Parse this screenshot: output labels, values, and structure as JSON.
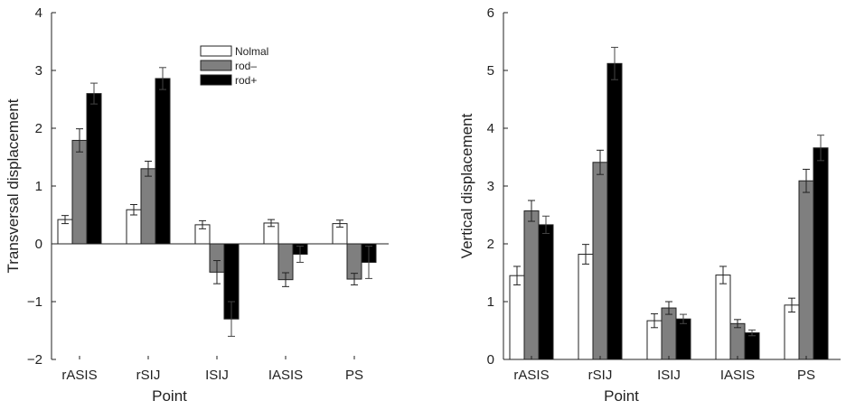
{
  "colors": {
    "Nolmal": "#ffffff",
    "rod–": "#7f7f7f",
    "rod+": "#000000",
    "axis": "#222222"
  },
  "chart_data": [
    {
      "type": "bar",
      "title": "",
      "xlabel": "Point",
      "ylabel": "Transversal displacement",
      "categories": [
        "rASIS",
        "rSIJ",
        "ISIJ",
        "IASIS",
        "PS"
      ],
      "ylim": [
        -2,
        4
      ],
      "yticks": [
        -2,
        -1,
        0,
        1,
        2,
        3,
        4
      ],
      "ytick_labels": [
        "−2",
        "−1",
        "0",
        "1",
        "2",
        "3",
        "4"
      ],
      "baseline": 0,
      "grid": false,
      "legend": {
        "position": "top-center",
        "entries": [
          "Nolmal",
          "rod–",
          "rod+"
        ]
      },
      "series": [
        {
          "name": "Nolmal",
          "values": [
            0.42,
            0.59,
            0.33,
            0.36,
            0.35
          ],
          "errors": [
            0.07,
            0.09,
            0.07,
            0.06,
            0.06
          ]
        },
        {
          "name": "rod–",
          "values": [
            1.79,
            1.3,
            -0.49,
            -0.62,
            -0.61
          ],
          "errors": [
            0.2,
            0.13,
            0.2,
            0.12,
            0.1
          ]
        },
        {
          "name": "rod+",
          "values": [
            2.6,
            2.86,
            -1.3,
            -0.18,
            -0.32
          ],
          "errors": [
            0.18,
            0.19,
            0.3,
            0.14,
            0.28
          ]
        }
      ]
    },
    {
      "type": "bar",
      "title": "",
      "xlabel": "Point",
      "ylabel": "Vertical displacement",
      "categories": [
        "rASIS",
        "rSIJ",
        "ISIJ",
        "IASIS",
        "PS"
      ],
      "ylim": [
        0,
        6
      ],
      "yticks": [
        0,
        1,
        2,
        3,
        4,
        5,
        6
      ],
      "ytick_labels": [
        "0",
        "1",
        "2",
        "3",
        "4",
        "5",
        "6"
      ],
      "baseline": 0,
      "grid": false,
      "series": [
        {
          "name": "Nolmal",
          "values": [
            1.45,
            1.82,
            0.67,
            1.46,
            0.94
          ],
          "errors": [
            0.16,
            0.17,
            0.12,
            0.15,
            0.12
          ]
        },
        {
          "name": "rod–",
          "values": [
            2.57,
            3.41,
            0.89,
            0.62,
            3.09
          ],
          "errors": [
            0.18,
            0.21,
            0.11,
            0.07,
            0.2
          ]
        },
        {
          "name": "rod+",
          "values": [
            2.33,
            5.12,
            0.7,
            0.46,
            3.66
          ],
          "errors": [
            0.15,
            0.28,
            0.08,
            0.05,
            0.22
          ]
        }
      ]
    }
  ]
}
